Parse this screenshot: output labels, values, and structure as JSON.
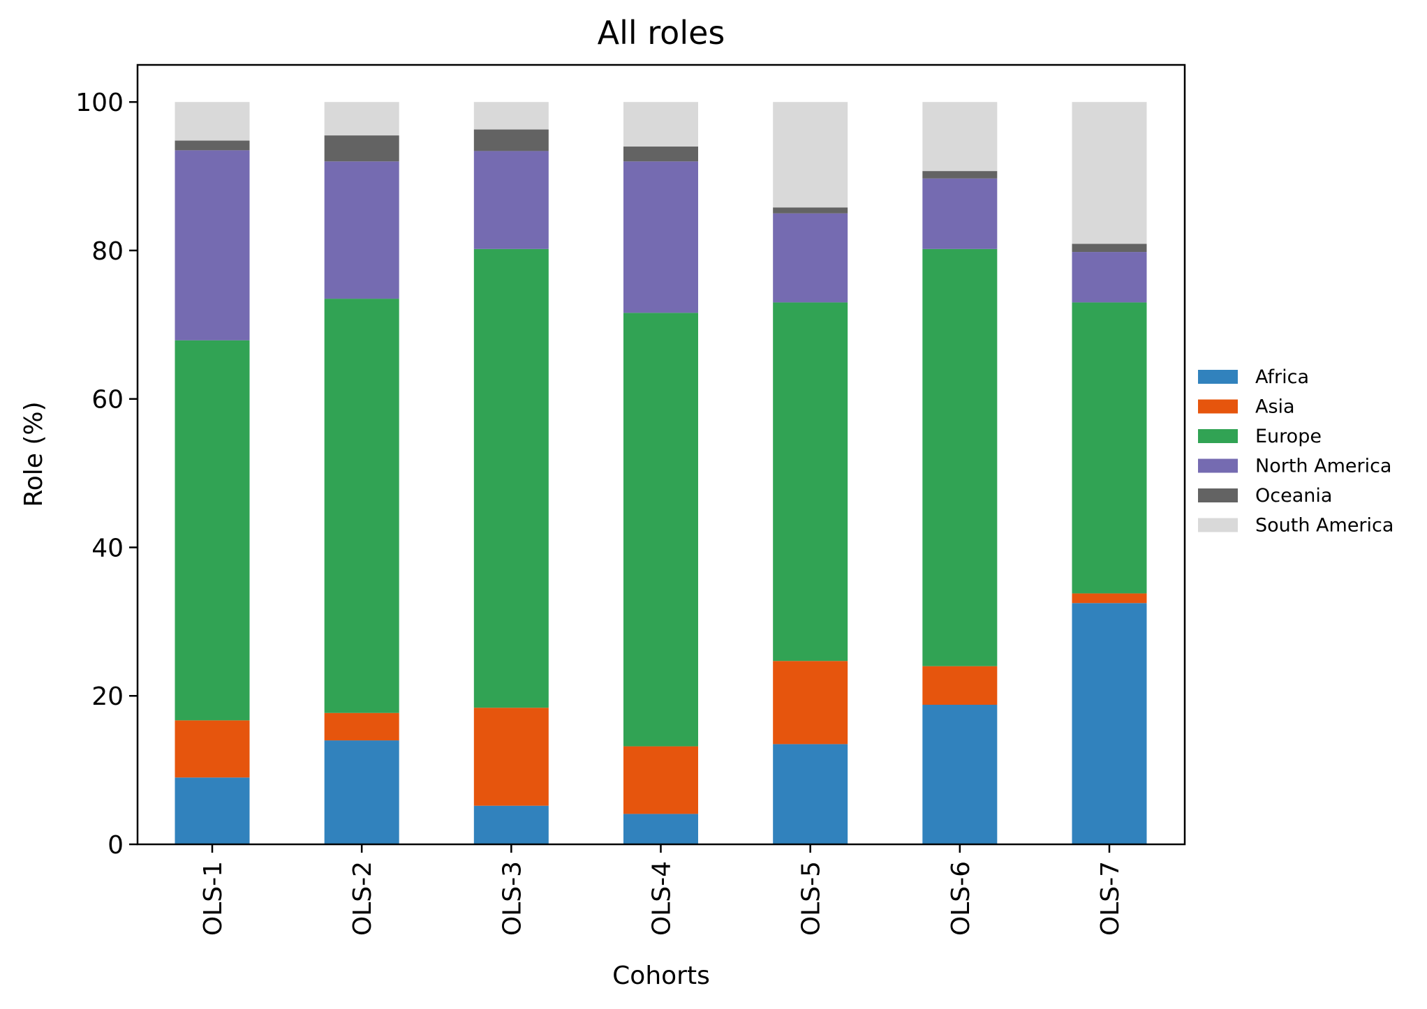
{
  "chart_data": {
    "type": "bar",
    "stacked": true,
    "title": "All roles",
    "xlabel": "Cohorts",
    "ylabel": "Role (%)",
    "ylim": [
      0,
      105
    ],
    "yticks": [
      0,
      20,
      40,
      60,
      80,
      100
    ],
    "categories": [
      "OLS-1",
      "OLS-2",
      "OLS-3",
      "OLS-4",
      "OLS-5",
      "OLS-6",
      "OLS-7"
    ],
    "series": [
      {
        "name": "Africa",
        "color": "#3182bd",
        "values": [
          9.0,
          14.0,
          5.2,
          4.1,
          13.5,
          18.8,
          32.5
        ]
      },
      {
        "name": "Asia",
        "color": "#e6550d",
        "values": [
          7.7,
          3.7,
          13.2,
          9.1,
          11.2,
          5.2,
          1.3
        ]
      },
      {
        "name": "Europe",
        "color": "#31a354",
        "values": [
          51.2,
          55.8,
          61.8,
          58.4,
          48.3,
          56.2,
          39.2
        ]
      },
      {
        "name": "North America",
        "color": "#756bb1",
        "values": [
          25.6,
          18.5,
          13.2,
          20.4,
          12.0,
          9.5,
          6.8
        ]
      },
      {
        "name": "Oceania",
        "color": "#636363",
        "values": [
          1.3,
          3.5,
          2.9,
          2.0,
          0.8,
          1.0,
          1.1
        ]
      },
      {
        "name": "South America",
        "color": "#d9d9d9",
        "values": [
          5.2,
          4.5,
          3.7,
          6.0,
          14.2,
          9.3,
          19.1
        ]
      }
    ],
    "legend_position": "right",
    "grid": false
  }
}
